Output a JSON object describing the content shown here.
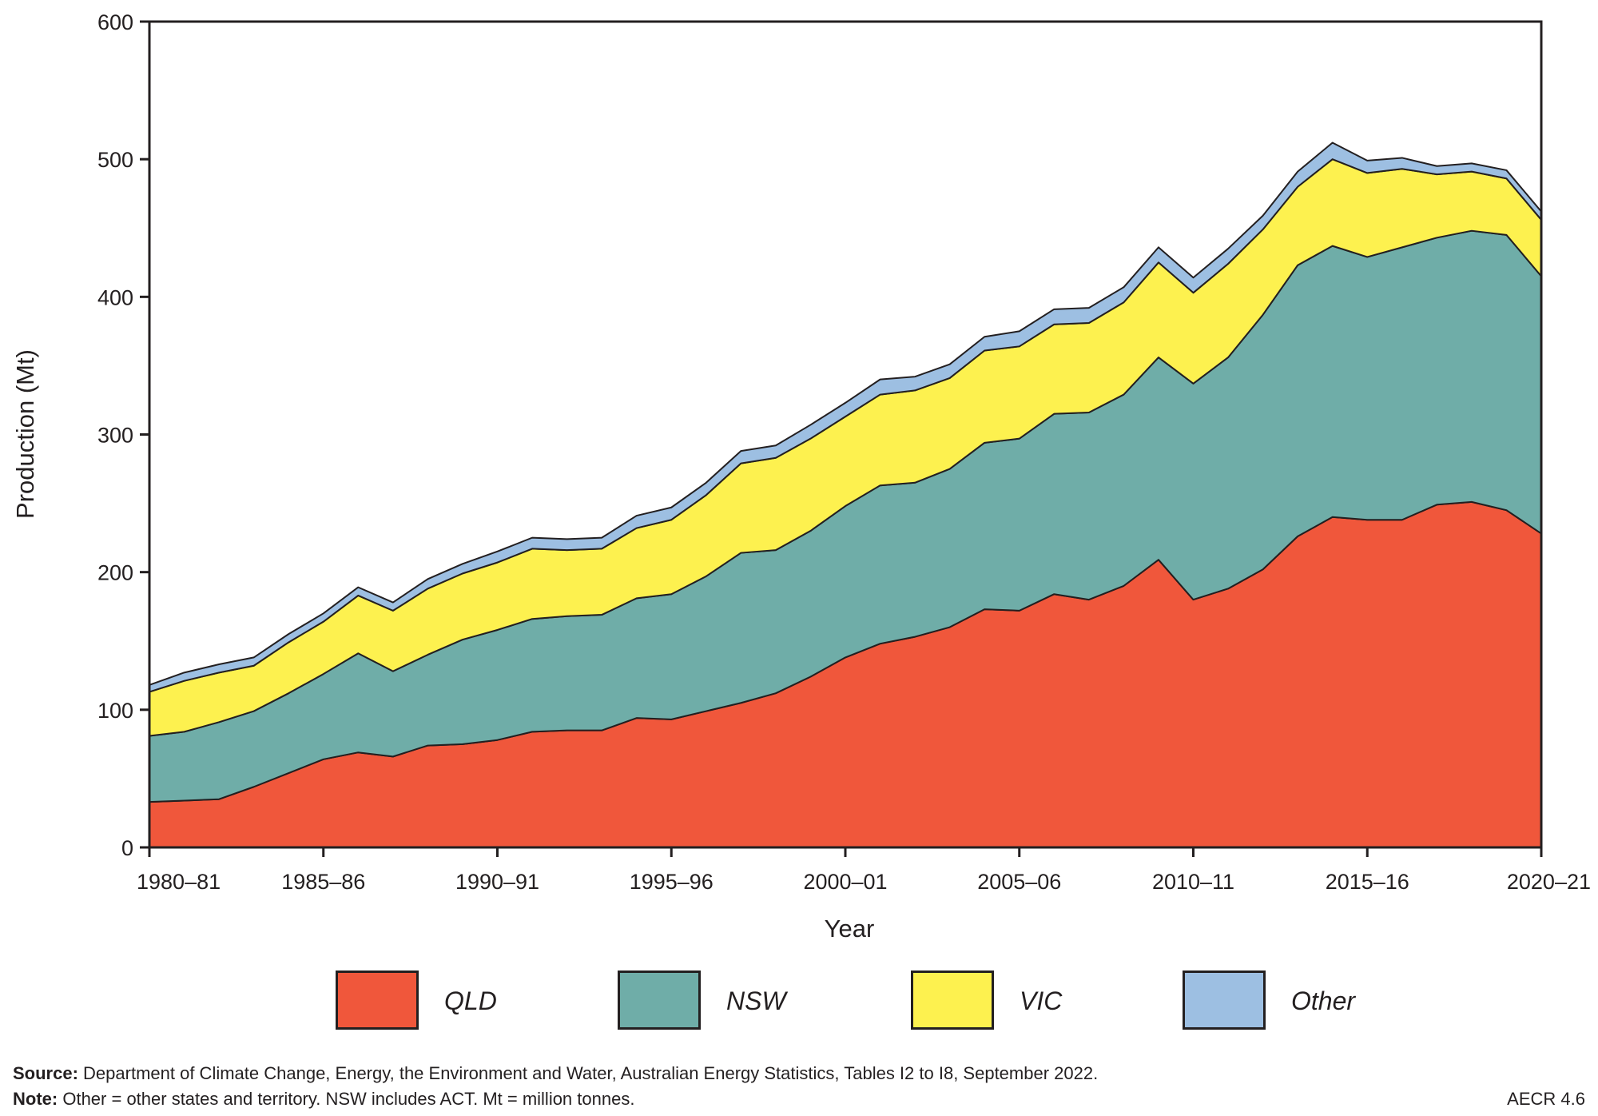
{
  "chart_data": {
    "type": "area",
    "stacked": true,
    "xlabel": "Year",
    "ylabel": "Production (Mt)",
    "ylim": [
      0,
      600
    ],
    "yticks": [
      0,
      100,
      200,
      300,
      400,
      500,
      600
    ],
    "xtick_labels": [
      "1980–81",
      "1985–86",
      "1990–91",
      "1995–96",
      "2000–01",
      "2005–06",
      "2010–11",
      "2015–16",
      "2020–21"
    ],
    "x": [
      "1980–81",
      "1981–82",
      "1982–83",
      "1983–84",
      "1984–85",
      "1985–86",
      "1986–87",
      "1987–88",
      "1988–89",
      "1989–90",
      "1990–91",
      "1991–92",
      "1992–93",
      "1993–94",
      "1994–95",
      "1995–96",
      "1996–97",
      "1997–98",
      "1998–99",
      "1999–00",
      "2000–01",
      "2001–02",
      "2002–03",
      "2003–04",
      "2004–05",
      "2005–06",
      "2006–07",
      "2007–08",
      "2008–09",
      "2009–10",
      "2010–11",
      "2011–12",
      "2012–13",
      "2013–14",
      "2014–15",
      "2015–16",
      "2016–17",
      "2017–18",
      "2018–19",
      "2019–20",
      "2020–21"
    ],
    "grid": false,
    "legend_position": "bottom",
    "series": [
      {
        "name": "QLD",
        "color": "#f0573b",
        "values": [
          33,
          34,
          35,
          44,
          54,
          64,
          69,
          66,
          74,
          75,
          78,
          84,
          85,
          85,
          94,
          93,
          99,
          105,
          112,
          124,
          138,
          148,
          153,
          160,
          173,
          172,
          184,
          180,
          190,
          209,
          180,
          188,
          202,
          226,
          240,
          238,
          238,
          249,
          251,
          245,
          228
        ]
      },
      {
        "name": "NSW",
        "color": "#6fada8",
        "values": [
          48,
          50,
          56,
          55,
          58,
          62,
          72,
          62,
          66,
          76,
          80,
          82,
          83,
          84,
          87,
          91,
          98,
          109,
          104,
          106,
          110,
          115,
          112,
          115,
          121,
          125,
          131,
          136,
          139,
          147,
          157,
          168,
          185,
          197,
          197,
          191,
          198,
          194,
          197,
          200,
          187
        ]
      },
      {
        "name": "VIC",
        "color": "#fdf14f",
        "values": [
          32,
          37,
          36,
          33,
          37,
          38,
          42,
          44,
          48,
          48,
          49,
          51,
          48,
          48,
          51,
          54,
          59,
          65,
          67,
          67,
          65,
          66,
          67,
          66,
          67,
          67,
          65,
          65,
          67,
          69,
          66,
          68,
          62,
          57,
          63,
          61,
          57,
          46,
          43,
          41,
          41
        ]
      },
      {
        "name": "Other",
        "color": "#9dbfe2",
        "values": [
          5,
          6,
          6,
          6,
          6,
          6,
          6,
          6,
          7,
          7,
          8,
          8,
          8,
          8,
          9,
          9,
          9,
          9,
          9,
          10,
          10,
          11,
          10,
          10,
          10,
          11,
          11,
          11,
          11,
          11,
          11,
          11,
          10,
          11,
          12,
          9,
          8,
          6,
          6,
          6,
          6
        ]
      }
    ]
  },
  "footer": {
    "source_label": "Source:",
    "source_text": "Department of Climate Change, Energy, the Environment and Water, Australian Energy Statistics, Tables I2 to I8, September 2022.",
    "note_label": "Note:",
    "note_text": "Other = other states and territory. NSW includes ACT. Mt = million tonnes.",
    "figure_id": "AECR 4.6"
  }
}
